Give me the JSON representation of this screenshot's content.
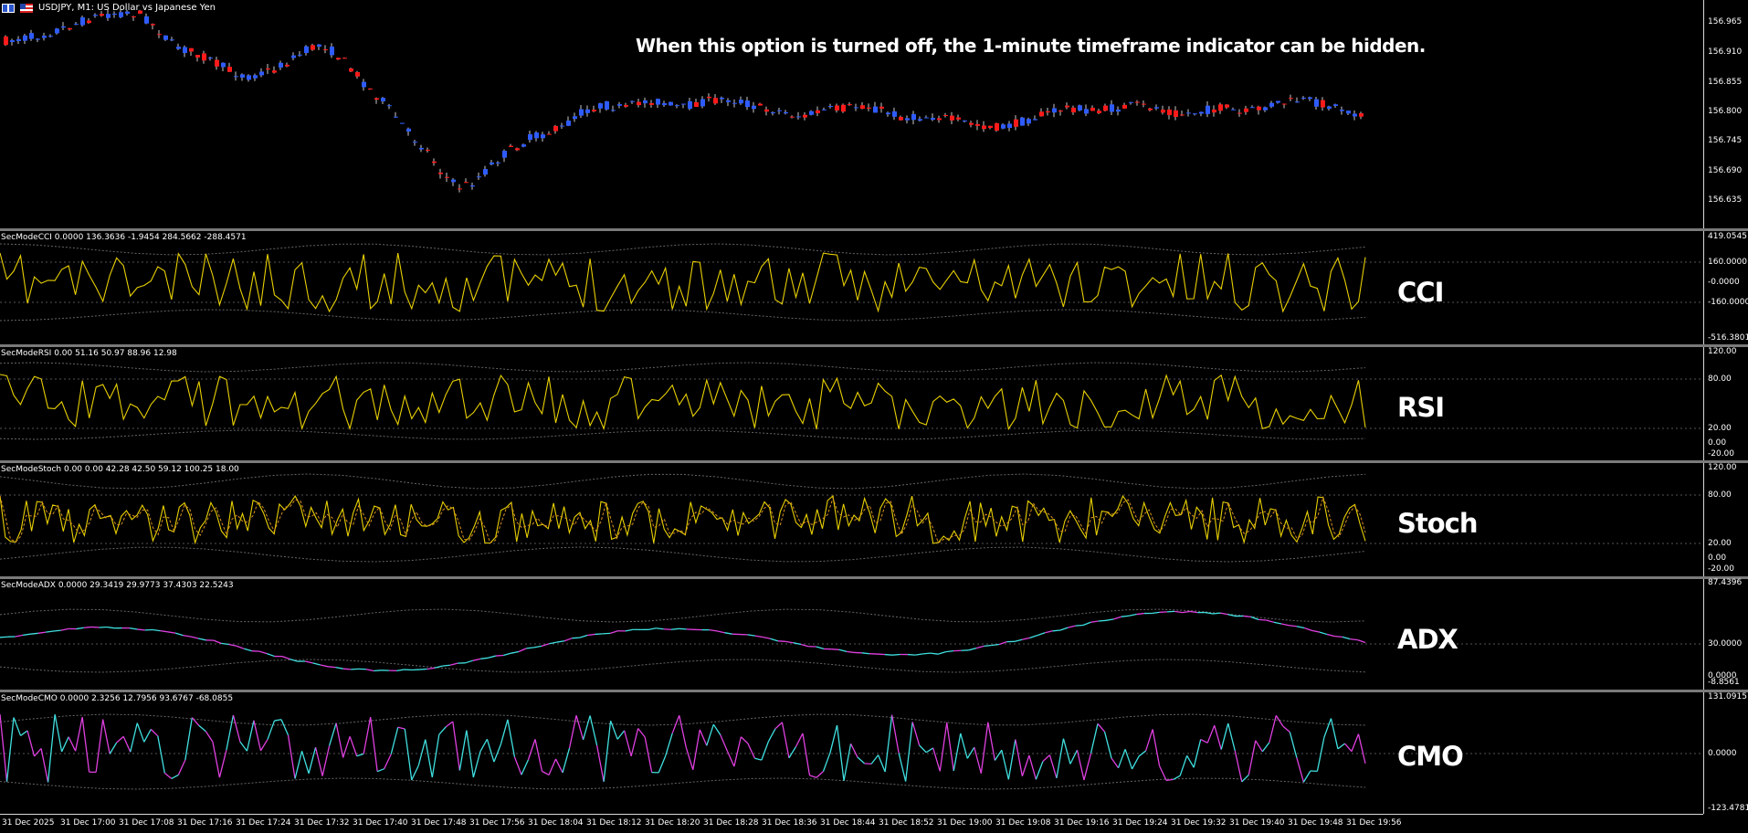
{
  "main": {
    "symbol_title": "USDJPY, M1:  US Dollar vs Japanese Yen",
    "banner": "When this option is turned off, the 1-minute timeframe indicator can be hidden.",
    "y_ticks": [
      "156.965",
      "156.910",
      "156.855",
      "156.800",
      "156.745",
      "156.690",
      "156.635"
    ],
    "colors": {
      "bull": "#2e5bff",
      "bear": "#ff1a1a",
      "bg": "#000000"
    }
  },
  "indicators": [
    {
      "key": "cci",
      "label": "SecModeCCI 0.0000 136.3636 -1.9454 284.5662 -288.4571",
      "name": "CCI",
      "ticks": [
        "419.0545",
        "160.0000",
        "-0.0000",
        "-160.0000",
        "-516.3801"
      ],
      "color": "#e8d000"
    },
    {
      "key": "rsi",
      "label": "SecModeRSI 0.00 51.16 50.97 88.96 12.98",
      "name": "RSI",
      "ticks": [
        "120.00",
        "80.00",
        "20.00",
        "0.00",
        "-20.00"
      ],
      "color": "#e8d000"
    },
    {
      "key": "stoch",
      "label": "SecModeStoch 0.00 0.00 42.28 42.50 59.12 100.25 18.00",
      "name": "Stoch",
      "ticks": [
        "120.00",
        "80.00",
        "20.00",
        "0.00",
        "-20.00"
      ],
      "color": "#e8d000"
    },
    {
      "key": "adx",
      "label": "SecModeADX 0.0000 29.3419 29.9773 37.4303 22.5243",
      "name": "ADX",
      "ticks": [
        "87.4396",
        "30.0000",
        "-8.8561",
        "0.0000"
      ],
      "color": "#40e0e0",
      "alt": "#e040e0"
    },
    {
      "key": "cmo",
      "label": "SecModeCMO 0.0000 2.3256 12.7956 93.6767 -68.0855",
      "name": "CMO",
      "ticks": [
        "131.0915",
        "0.0000",
        "-123.4781"
      ],
      "color": "#40e0e0",
      "alt": "#e040e0"
    }
  ],
  "time_axis": [
    "31 Dec 2025",
    "31 Dec 17:00",
    "31 Dec 17:08",
    "31 Dec 17:16",
    "31 Dec 17:24",
    "31 Dec 17:32",
    "31 Dec 17:40",
    "31 Dec 17:48",
    "31 Dec 17:56",
    "31 Dec 18:04",
    "31 Dec 18:12",
    "31 Dec 18:20",
    "31 Dec 18:28",
    "31 Dec 18:36",
    "31 Dec 18:44",
    "31 Dec 18:52",
    "31 Dec 19:00",
    "31 Dec 19:08",
    "31 Dec 19:16",
    "31 Dec 19:24",
    "31 Dec 19:32",
    "31 Dec 19:40",
    "31 Dec 19:48",
    "31 Dec 19:56"
  ]
}
